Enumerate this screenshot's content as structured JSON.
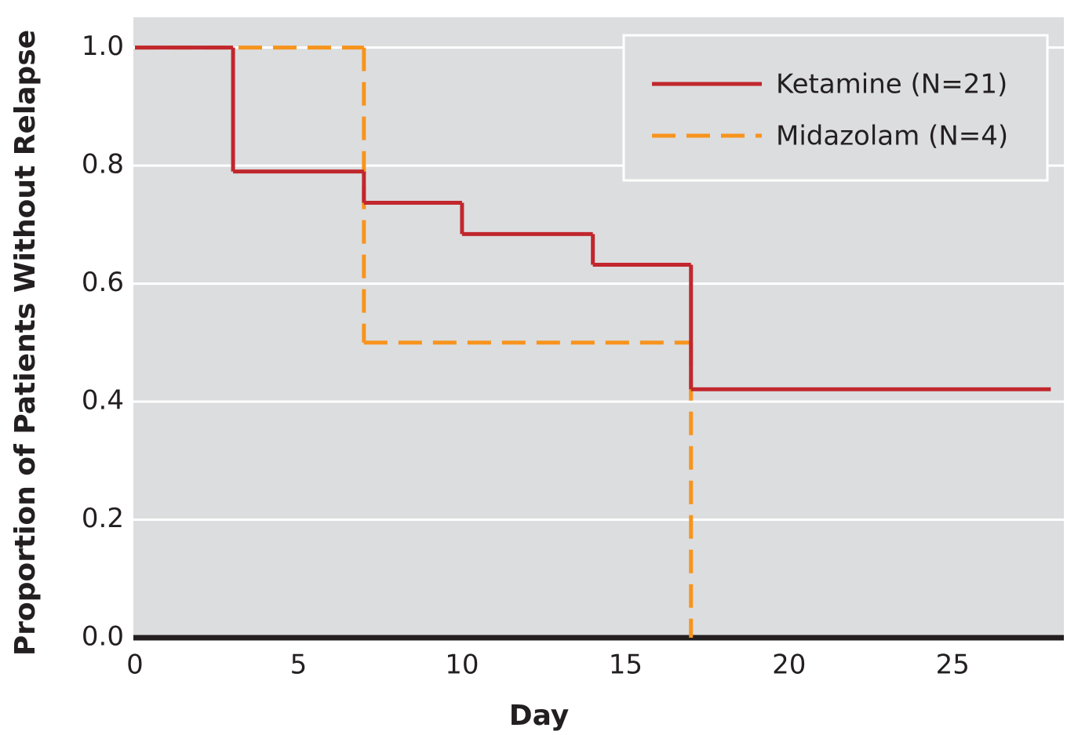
{
  "chart_data": {
    "type": "step",
    "x_label": "Day",
    "y_label": "Proportion of Patients Without Relapse",
    "xlim": [
      0,
      28.4
    ],
    "ylim": [
      0,
      1.05
    ],
    "xticks": [
      0,
      5,
      10,
      15,
      20,
      25
    ],
    "yticks": [
      {
        "value": 0,
        "label": "0.0"
      },
      0.2,
      0.4,
      0.6,
      0.8,
      {
        "value": 1,
        "label": "1.0"
      }
    ],
    "grid": true,
    "legend": "upper right",
    "series": [
      {
        "name": "Ketamine (N=21)",
        "color": "#c1272d",
        "dashed": false,
        "x": [
          0,
          3,
          7,
          10,
          14,
          17,
          28
        ],
        "values": [
          1,
          0.79,
          0.737,
          0.684,
          0.632,
          0.421,
          0.421
        ]
      },
      {
        "name": "Midazolam (N=4)",
        "color": "#f7941d",
        "dashed": true,
        "x": [
          0,
          7,
          17
        ],
        "values": [
          1,
          0.5,
          0
        ]
      }
    ]
  }
}
